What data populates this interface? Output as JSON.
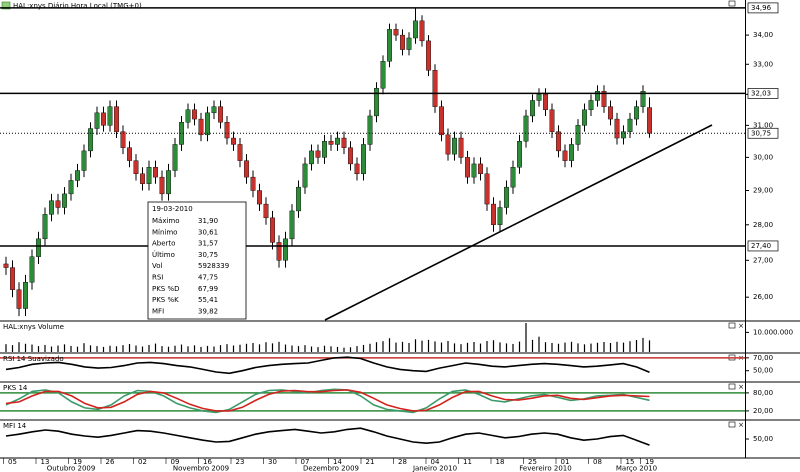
{
  "title": "HAL:xnys Diário Hora Local (TMG+0)",
  "chart_data": [
    {
      "type": "candlestick",
      "up_color": "#2e8b3a",
      "down_color": "#c8322c",
      "wick_color": "#000000",
      "log_scale": true,
      "ylim": [
        25.4,
        35.1
      ],
      "yticks": [
        {
          "value": 26,
          "label": "26,00"
        },
        {
          "value": 27,
          "label": "27,00"
        },
        {
          "value": 28,
          "label": "28,00"
        },
        {
          "value": 29,
          "label": "29,00"
        },
        {
          "value": 30,
          "label": "30,00"
        },
        {
          "value": 31,
          "label": "31,00"
        },
        {
          "value": 32,
          "label": "32,00"
        },
        {
          "value": 33,
          "label": "33,00"
        },
        {
          "value": 34,
          "label": "34,00"
        }
      ],
      "levels": [
        {
          "value": 34.96,
          "label": "34,96",
          "style": "solid"
        },
        {
          "value": 32.03,
          "label": "32,03",
          "style": "solid"
        },
        {
          "value": 30.75,
          "label": "30,75",
          "style": "dotted"
        },
        {
          "value": 27.4,
          "label": "27,40",
          "style": "solid"
        }
      ],
      "open": [
        26.9,
        26.8,
        26.2,
        25.7,
        26.4,
        27.1,
        27.6,
        28.3,
        28.7,
        28.5,
        28.9,
        29.3,
        29.6,
        30.2,
        30.9,
        31.4,
        31.0,
        31.6,
        30.8,
        30.3,
        29.9,
        29.5,
        29.2,
        29.7,
        29.4,
        28.9,
        29.6,
        30.4,
        31.1,
        31.5,
        31.2,
        30.7,
        31.4,
        31.6,
        31.1,
        30.6,
        30.4,
        29.9,
        29.4,
        29.0,
        28.6,
        28.2,
        27.5,
        27.0,
        27.6,
        28.4,
        29.1,
        29.8,
        30.2,
        30.0,
        30.5,
        30.4,
        30.6,
        30.3,
        29.8,
        29.5,
        30.4,
        31.3,
        32.2,
        33.1,
        34.2,
        34.0,
        33.5,
        33.9,
        34.5,
        33.8,
        32.8,
        31.6,
        30.7,
        30.1,
        30.6,
        30.0,
        29.4,
        29.8,
        29.5,
        28.6,
        28.0,
        28.5,
        29.1,
        29.7,
        30.5,
        31.3,
        31.8,
        32.0,
        31.5,
        30.8,
        30.2,
        29.9,
        30.4,
        31.0,
        31.5,
        31.8,
        32.1,
        31.6,
        31.2,
        30.6,
        30.8,
        31.2,
        31.6,
        31.57
      ],
      "high": [
        27.1,
        27.0,
        26.4,
        26.6,
        27.3,
        27.8,
        28.5,
        28.9,
        28.9,
        29.1,
        29.5,
        29.8,
        30.4,
        31.1,
        31.6,
        31.6,
        31.8,
        31.8,
        31.0,
        30.5,
        30.1,
        29.7,
        29.9,
        29.9,
        29.6,
        29.8,
        30.6,
        31.3,
        31.7,
        31.7,
        31.4,
        31.6,
        31.8,
        31.8,
        31.3,
        30.8,
        30.6,
        30.1,
        29.6,
        29.2,
        28.8,
        28.4,
        27.7,
        27.8,
        28.6,
        29.3,
        30.0,
        30.4,
        30.4,
        30.7,
        30.7,
        30.8,
        30.8,
        30.5,
        30.0,
        30.6,
        31.5,
        32.4,
        33.3,
        34.4,
        34.4,
        34.2,
        34.1,
        34.96,
        34.7,
        34.0,
        33.0,
        31.8,
        30.9,
        30.8,
        30.8,
        30.2,
        30.0,
        30.0,
        29.7,
        28.8,
        28.7,
        29.3,
        29.9,
        30.7,
        31.5,
        32.0,
        32.2,
        32.2,
        31.7,
        31.0,
        30.4,
        30.6,
        31.2,
        31.7,
        32.0,
        32.3,
        32.3,
        31.8,
        31.4,
        31.0,
        31.4,
        31.8,
        32.3,
        31.9
      ],
      "low": [
        26.6,
        26.0,
        25.5,
        25.5,
        26.2,
        26.9,
        27.4,
        28.1,
        28.3,
        28.3,
        28.7,
        29.1,
        29.4,
        30.0,
        30.7,
        30.8,
        30.8,
        30.6,
        30.1,
        29.7,
        29.3,
        29.0,
        29.0,
        29.2,
        28.7,
        28.7,
        29.4,
        30.2,
        30.9,
        31.0,
        30.5,
        30.5,
        31.2,
        30.9,
        30.4,
        30.2,
        29.7,
        29.2,
        28.8,
        28.4,
        28.0,
        27.3,
        26.8,
        26.8,
        27.4,
        28.2,
        28.9,
        29.6,
        29.8,
        29.8,
        30.2,
        30.2,
        30.1,
        29.6,
        29.3,
        29.3,
        30.2,
        31.1,
        32.0,
        32.9,
        33.8,
        33.3,
        33.3,
        33.7,
        33.6,
        32.6,
        31.4,
        30.5,
        29.9,
        29.9,
        29.8,
        29.2,
        29.2,
        29.3,
        28.4,
        27.8,
        27.8,
        28.3,
        28.9,
        29.5,
        30.3,
        31.1,
        31.6,
        31.3,
        30.6,
        30.0,
        29.7,
        29.7,
        30.2,
        30.8,
        31.3,
        31.6,
        31.4,
        31.0,
        30.4,
        30.4,
        30.6,
        31.0,
        31.4,
        30.61
      ],
      "close": [
        26.8,
        26.2,
        25.7,
        26.4,
        27.1,
        27.6,
        28.3,
        28.7,
        28.5,
        28.9,
        29.3,
        29.6,
        30.2,
        30.9,
        31.4,
        31.0,
        31.6,
        30.8,
        30.3,
        29.9,
        29.5,
        29.2,
        29.7,
        29.4,
        28.9,
        29.6,
        30.4,
        31.1,
        31.5,
        31.2,
        30.7,
        31.4,
        31.6,
        31.1,
        30.6,
        30.4,
        29.9,
        29.4,
        29.0,
        28.6,
        28.2,
        27.5,
        27.0,
        27.6,
        28.4,
        29.1,
        29.8,
        30.2,
        30.0,
        30.5,
        30.4,
        30.6,
        30.3,
        29.8,
        29.5,
        30.4,
        31.3,
        32.2,
        33.1,
        34.2,
        34.0,
        33.5,
        33.9,
        34.5,
        33.8,
        32.8,
        31.6,
        30.7,
        30.1,
        30.6,
        30.0,
        29.4,
        29.8,
        29.5,
        28.6,
        28.0,
        28.5,
        29.1,
        29.7,
        30.5,
        31.3,
        31.8,
        32.0,
        31.5,
        30.8,
        30.2,
        29.9,
        30.4,
        31.0,
        31.5,
        31.8,
        32.1,
        31.6,
        31.2,
        30.6,
        30.8,
        31.2,
        31.6,
        32.1,
        30.75
      ]
    },
    {
      "type": "bar",
      "title": "HAL:xnys Volume",
      "color": "#000000",
      "ylim": [
        0,
        15300000
      ],
      "yticks": [
        {
          "value": 10000000,
          "label": "10.000.000"
        }
      ],
      "values": [
        4000000,
        3500000,
        5000000,
        4200000,
        3800000,
        3000000,
        3600000,
        2800000,
        3300000,
        3900000,
        3100000,
        2700000,
        4500000,
        3400000,
        3000000,
        2600000,
        3200000,
        2900000,
        3500000,
        4100000,
        3300000,
        2800000,
        3600000,
        4300000,
        3000000,
        2700000,
        3200000,
        3800000,
        2900000,
        3400000,
        2600000,
        3100000,
        2800000,
        3500000,
        4000000,
        3300000,
        3700000,
        4200000,
        4600000,
        3900000,
        5000000,
        4400000,
        5200000,
        3800000,
        3300000,
        3000000,
        3500000,
        2800000,
        2500000,
        3200000,
        2900000,
        2600000,
        2200000,
        2400000,
        3000000,
        3600000,
        4200000,
        5000000,
        5500000,
        7000000,
        4800000,
        5200000,
        4600000,
        6500000,
        5800000,
        6200000,
        5400000,
        4800000,
        5600000,
        4400000,
        4000000,
        4700000,
        5100000,
        4300000,
        5600000,
        6000000,
        4900000,
        4400000,
        4100000,
        5300000,
        14800000,
        6200000,
        7800000,
        5000000,
        4600000,
        4200000,
        4800000,
        5200000,
        4400000,
        3900000,
        4300000,
        4700000,
        5100000,
        4600000,
        5200000,
        4800000,
        5500000,
        6100000,
        7200000,
        5928339
      ]
    },
    {
      "type": "line",
      "title": "RSI 14 Suavizado",
      "ylim": [
        34,
        76
      ],
      "yticks": [
        {
          "value": 70,
          "label": "70,00"
        },
        {
          "value": 50,
          "label": "50,00"
        }
      ],
      "levels": [
        {
          "value": 70,
          "color": "#c8322c"
        }
      ],
      "series": [
        {
          "color": "#000000",
          "values": [
            52,
            55,
            60,
            62,
            63,
            60,
            56,
            54,
            55,
            58,
            62,
            63,
            61,
            58,
            56,
            52,
            48,
            46,
            50,
            55,
            58,
            60,
            61,
            62,
            66,
            70,
            71,
            69,
            62,
            56,
            52,
            50,
            49,
            54,
            58,
            62,
            60,
            57,
            56,
            58,
            60,
            61,
            60,
            58,
            56,
            57,
            59,
            61,
            56,
            47.75
          ]
        }
      ]
    },
    {
      "type": "line",
      "title": "PKS 14",
      "ylim": [
        -7,
        113
      ],
      "yticks": [
        {
          "value": 80,
          "label": "80,00"
        },
        {
          "value": 20,
          "label": "20,00"
        }
      ],
      "levels": [
        {
          "value": 80,
          "color": "#2e8b3a"
        },
        {
          "value": 20,
          "color": "#2e8b3a"
        }
      ],
      "series": [
        {
          "color": "#3a9a6a",
          "values": [
            40,
            60,
            85,
            90,
            80,
            50,
            30,
            25,
            40,
            70,
            88,
            85,
            70,
            45,
            30,
            20,
            15,
            25,
            50,
            75,
            88,
            90,
            85,
            80,
            88,
            92,
            90,
            70,
            40,
            25,
            20,
            15,
            30,
            60,
            85,
            90,
            75,
            55,
            50,
            60,
            70,
            75,
            65,
            55,
            60,
            70,
            72,
            75,
            65,
            55.41
          ]
        },
        {
          "color": "#d2231e",
          "values": [
            45,
            50,
            70,
            85,
            85,
            70,
            45,
            30,
            32,
            50,
            75,
            85,
            80,
            62,
            42,
            28,
            20,
            20,
            32,
            55,
            75,
            86,
            88,
            84,
            84,
            88,
            90,
            82,
            62,
            40,
            28,
            20,
            22,
            40,
            65,
            84,
            85,
            70,
            58,
            56,
            62,
            70,
            72,
            62,
            58,
            64,
            70,
            72,
            70,
            67.99
          ]
        }
      ]
    },
    {
      "type": "line",
      "title": "MFI 14",
      "ylim": [
        20,
        80
      ],
      "yticks": [
        {
          "value": 50,
          "label": "50,00"
        }
      ],
      "levels": [],
      "series": [
        {
          "color": "#000000",
          "values": [
            55,
            58,
            62,
            65,
            63,
            58,
            55,
            53,
            56,
            60,
            64,
            63,
            60,
            56,
            52,
            48,
            45,
            46,
            52,
            58,
            62,
            64,
            66,
            63,
            60,
            62,
            66,
            68,
            62,
            55,
            50,
            45,
            43,
            45,
            52,
            58,
            60,
            56,
            52,
            54,
            58,
            60,
            58,
            52,
            48,
            50,
            54,
            56,
            48,
            39.82
          ]
        }
      ]
    }
  ],
  "x_axis": {
    "days": [
      null,
      "05",
      null,
      null,
      null,
      null,
      "13",
      null,
      null,
      null,
      null,
      "19",
      null,
      null,
      null,
      null,
      "26",
      null,
      null,
      null,
      null,
      "02",
      null,
      null,
      null,
      null,
      "09",
      null,
      null,
      null,
      null,
      "16",
      null,
      null,
      null,
      null,
      "23",
      null,
      null,
      null,
      null,
      "30",
      null,
      null,
      null,
      null,
      "07",
      null,
      null,
      null,
      null,
      "14",
      null,
      null,
      null,
      null,
      "21",
      null,
      null,
      null,
      null,
      "28",
      null,
      null,
      null,
      null,
      "04",
      null,
      null,
      null,
      null,
      "11",
      null,
      null,
      null,
      null,
      "18",
      null,
      null,
      null,
      null,
      "25",
      null,
      null,
      null,
      null,
      "01",
      null,
      null,
      null,
      null,
      "08",
      null,
      null,
      null,
      null,
      "15",
      null,
      null,
      "19"
    ],
    "months": [
      null,
      null,
      null,
      null,
      null,
      null,
      null,
      null,
      null,
      null,
      "Outubro 2009",
      null,
      null,
      null,
      null,
      null,
      null,
      null,
      null,
      null,
      null,
      null,
      null,
      null,
      null,
      null,
      null,
      null,
      null,
      null,
      "Novembro 2009",
      null,
      null,
      null,
      null,
      null,
      null,
      null,
      null,
      null,
      null,
      null,
      null,
      null,
      null,
      null,
      null,
      null,
      null,
      null,
      "Dezembro 2009",
      null,
      null,
      null,
      null,
      null,
      null,
      null,
      null,
      null,
      null,
      null,
      null,
      null,
      null,
      null,
      "Janeiro 2010",
      null,
      null,
      null,
      null,
      null,
      null,
      null,
      null,
      null,
      null,
      null,
      null,
      null,
      null,
      null,
      null,
      "Fevereiro 2010",
      null,
      null,
      null,
      null,
      null,
      null,
      null,
      null,
      null,
      null,
      null,
      null,
      null,
      "Março 2010",
      null,
      null
    ]
  },
  "info_box": {
    "date": "19-03-2010",
    "rows": [
      {
        "label": "Máximo",
        "value": "31,90"
      },
      {
        "label": "Mínimo",
        "value": "30,61"
      },
      {
        "label": "Aberto",
        "value": "31,57"
      },
      {
        "label": "Último",
        "value": "30,75"
      },
      {
        "label": "Vol",
        "value": "5928339"
      },
      {
        "label": "RSI",
        "value": "47,75"
      },
      {
        "label": "PKS %D",
        "value": "67,99",
        "color": "#c8322c"
      },
      {
        "label": "PKS %K",
        "value": "55,41",
        "color": "#2e8b3a"
      },
      {
        "label": "MFI",
        "value": "39,82"
      }
    ]
  }
}
